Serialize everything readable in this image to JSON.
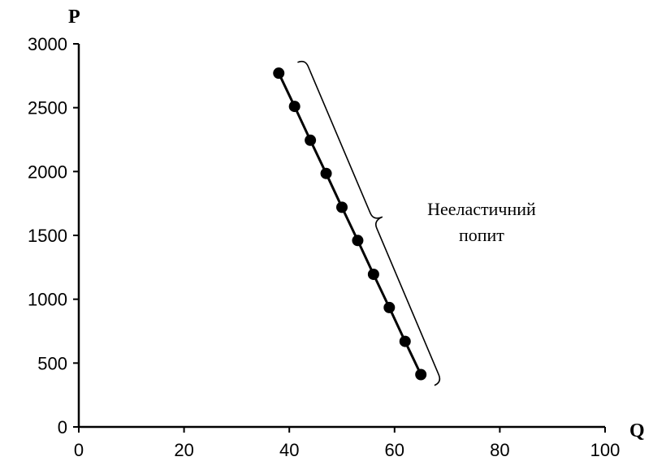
{
  "chart_data": {
    "type": "line",
    "xlabel": "Q",
    "ylabel": "P",
    "xlim": [
      0,
      100
    ],
    "ylim": [
      0,
      3000
    ],
    "x_ticks": [
      "0",
      "20",
      "40",
      "60",
      "80",
      "100"
    ],
    "y_ticks": [
      "0",
      "500",
      "1000",
      "1500",
      "2000",
      "2500",
      "3000"
    ],
    "grid": false,
    "legend": "none",
    "series": [
      {
        "x": [
          38,
          41,
          44,
          47,
          50,
          53,
          56,
          59,
          62,
          65
        ],
        "y": [
          2770,
          2510,
          2245,
          1985,
          1720,
          1460,
          1195,
          935,
          670,
          410
        ],
        "marker": "circle",
        "color": "#000000"
      }
    ],
    "annotation": {
      "lines": [
        "Нееластичний",
        "попит"
      ],
      "bracket_from": {
        "x": 43,
        "y": 2880
      },
      "bracket_to": {
        "x": 69,
        "y": 350
      }
    }
  }
}
